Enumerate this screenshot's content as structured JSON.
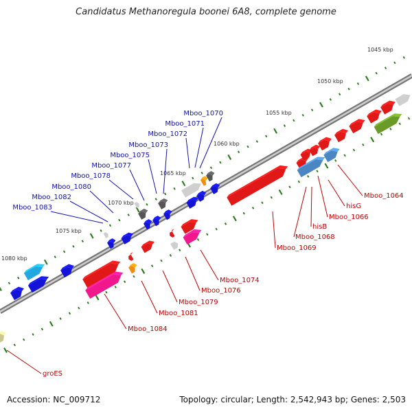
{
  "title": "Candidatus Methanoregula boonei 6A8, complete genome",
  "footer": {
    "accession": "Accession: NC_009712",
    "summary": "Topology: circular; Length: 2,542,943 bp; Genes: 2,503"
  },
  "colors": {
    "backbone": "#8c8c8c",
    "tick": "#2e7d1e",
    "label_upper": "#1010b0",
    "label_lower": "#c00000",
    "red": "#e01818",
    "blue": "#1414d8",
    "grey": "#9a9a9a",
    "darkgrey": "#555555",
    "lightgrey": "#cfcfcf",
    "pink": "#f0188c",
    "cyan": "#20a8e0",
    "steel": "#4c86c2",
    "olive": "#6a9a28",
    "orange": "#f08c10",
    "khaki": "#c8c890"
  },
  "scale_labels": [
    "1045 kbp",
    "1050 kbp",
    "1055 kbp",
    "1060 kbp",
    "1065 kbp",
    "1070 kbp",
    "1075 kbp",
    "1080 kbp"
  ],
  "genes_upper": [
    "Mboo_1070",
    "Mboo_1071",
    "Mboo_1072",
    "Mboo_1073",
    "Mboo_1075",
    "Mboo_1077",
    "Mboo_1078",
    "Mboo_1080",
    "Mboo_1082",
    "Mboo_1083"
  ],
  "genes_lower": [
    "Mboo_1064",
    "hisG",
    "Mboo_1066",
    "hisB",
    "Mboo_1068",
    "Mboo_1069",
    "Mboo_1074",
    "Mboo_1076",
    "Mboo_1079",
    "Mboo_1081",
    "Mboo_1084",
    "groES"
  ]
}
